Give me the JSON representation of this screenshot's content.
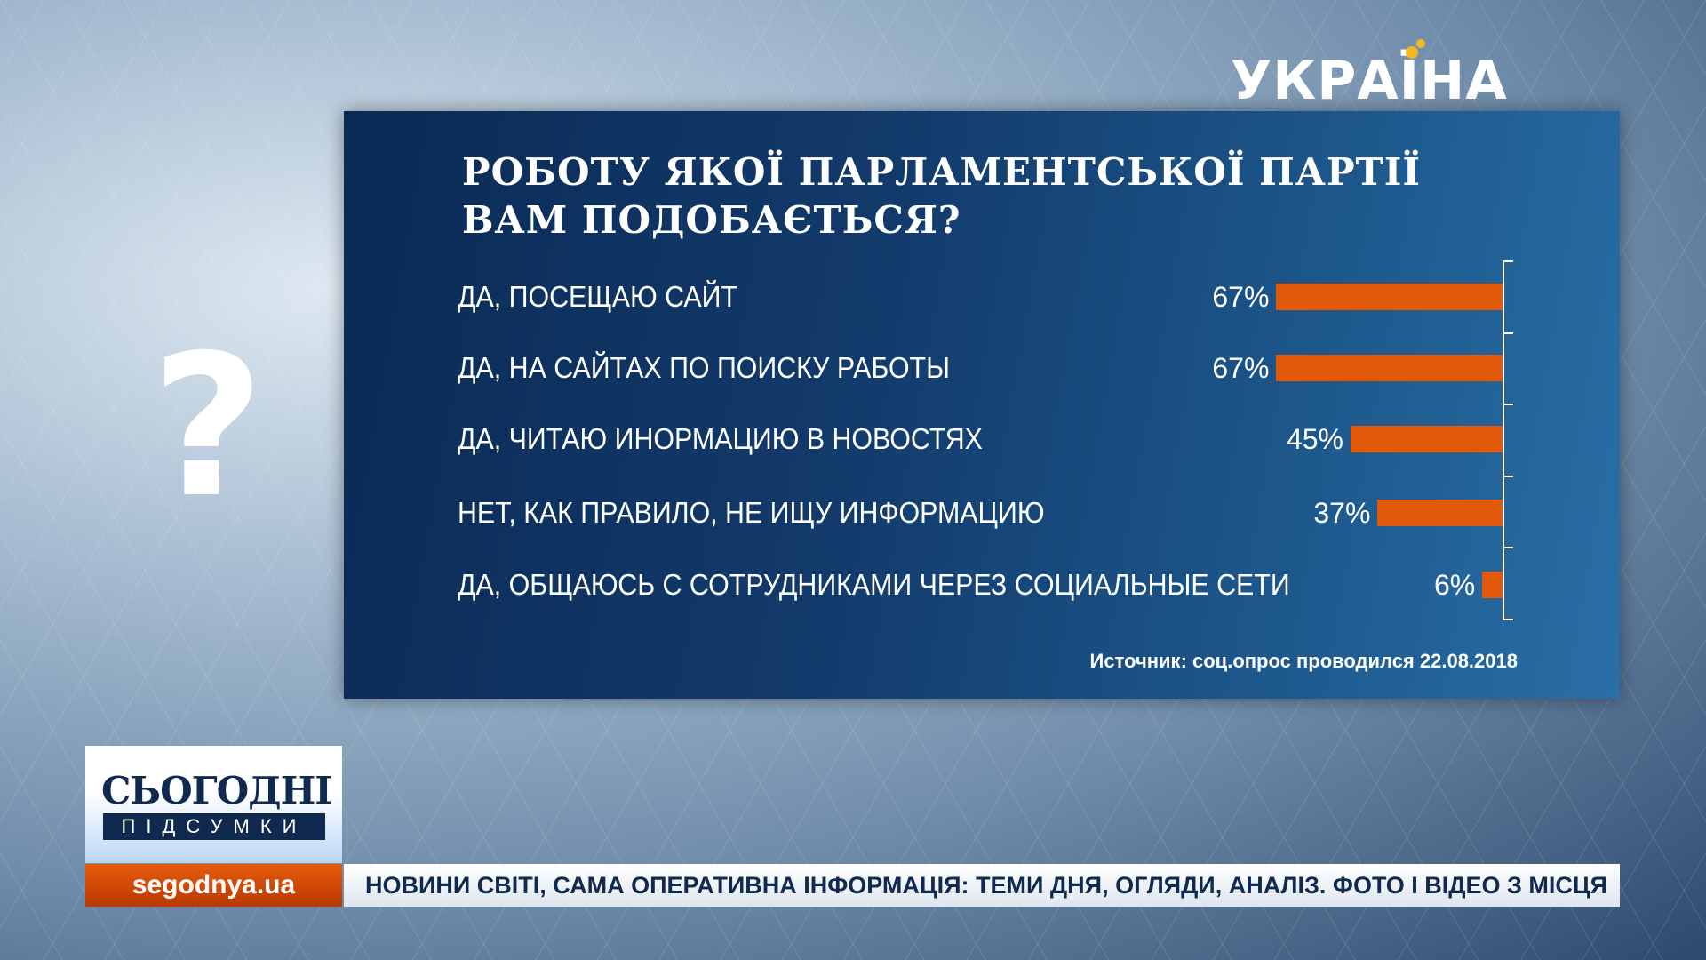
{
  "channel_logo": "УКРАЇНА",
  "decor": {
    "question_mark": "?"
  },
  "chart_data": {
    "type": "bar",
    "orientation": "horizontal",
    "title": "РОБОТУ ЯКОЇ ПАРЛАМЕНТСЬКОЇ ПАРТІЇ ВАМ ПОДОБАЄТЬСЯ?",
    "title_lines": [
      "РОБОТУ ЯКОЇ ПАРЛАМЕНТСЬКОЇ ПАРТІЇ",
      "ВАМ ПОДОБАЄТЬСЯ?"
    ],
    "categories": [
      "ДА, ПОСЕЩАЮ САЙТ",
      "ДА, НА САЙТАХ ПО ПОИСКУ РАБОТЫ",
      "ДА, ЧИТАЮ ИНОРМАЦИЮ В НОВОСТЯХ",
      "НЕТ, КАК ПРАВИЛО, НЕ ИЩУ ИНФОРМАЦИЮ",
      "ДА, ОБЩАЮСЬ С СОТРУДНИКАМИ ЧЕРЕЗ СОЦИАЛЬНЫЕ СЕТИ"
    ],
    "values": [
      67,
      67,
      45,
      37,
      6
    ],
    "value_labels": [
      "67%",
      "67%",
      "45%",
      "37%",
      "6%"
    ],
    "bar_color": "#e05a0a",
    "source": "Источник: соц.опрос проводился 22.08.2018"
  },
  "show": {
    "logo_line1": "СЬОГОДНІ",
    "logo_line2": "ПІДСУМКИ",
    "site": "segodnya.ua"
  },
  "ticker": "НОВИНИ СВІТІ, САМА ОПЕРАТИВНА ІНФОРМАЦІЯ: ТЕМИ ДНЯ, ОГЛЯДИ, АНАЛІЗ. ФОТО І ВІДЕО З МІСЦЯ"
}
